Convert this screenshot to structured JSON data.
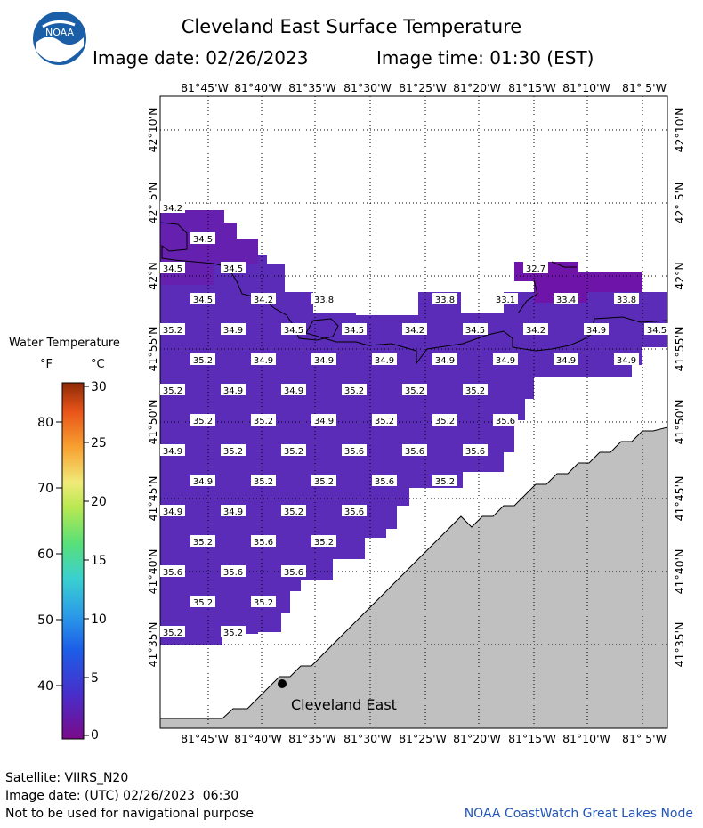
{
  "header": {
    "title": "Cleveland East Surface Temperature",
    "image_date": "Image date: 02/26/2023",
    "image_time": "Image time: 01:30 (EST)",
    "logo_text": "NOAA"
  },
  "map": {
    "lon_labels": [
      "81°45'W",
      "81°40'W",
      "81°35'W",
      "81°30'W",
      "81°25'W",
      "81°20'W",
      "81°15'W",
      "81°10'W",
      "81° 5'W"
    ],
    "lat_labels": [
      "42°10'N",
      "42° 5'N",
      "42°N",
      "41°55'N",
      "41°50'N",
      "41°45'N",
      "41°40'N",
      "41°35'N"
    ],
    "place_label": "Cleveland East",
    "temperature_labels": [
      "34.2",
      "34.5",
      "34.5",
      "34.5",
      "32.7",
      "34.5",
      "34.2",
      "33.8",
      "33.8",
      "33.1",
      "33.4",
      "33.8",
      "35.2",
      "34.9",
      "34.5",
      "34.5",
      "34.2",
      "34.5",
      "34.2",
      "34.9",
      "34.5",
      "35.2",
      "34.9",
      "34.9",
      "34.9",
      "34.9",
      "34.9",
      "34.9",
      "34.9",
      "35.2",
      "34.9",
      "34.9",
      "35.2",
      "35.2",
      "35.2",
      "35.2",
      "35.2",
      "34.9",
      "35.2",
      "35.2",
      "35.6",
      "34.9",
      "35.2",
      "35.2",
      "35.6",
      "35.6",
      "35.6",
      "34.9",
      "35.2",
      "35.2",
      "35.6",
      "35.2",
      "34.9",
      "34.9",
      "35.2",
      "35.6",
      "35.2",
      "35.6",
      "35.2",
      "35.6",
      "35.6",
      "35.6",
      "35.2",
      "35.2",
      "35.2",
      "35.2"
    ],
    "colors": {
      "water": "#5a2cb8",
      "land": "#c0c0c0",
      "cold_patch": "#6f14a8"
    }
  },
  "legend": {
    "title": "Water Temperature",
    "unit_f": "°F",
    "unit_c": "°C",
    "f_ticks": [
      "80",
      "70",
      "60",
      "50",
      "40"
    ],
    "c_ticks": [
      "30",
      "25",
      "20",
      "15",
      "10",
      "5",
      "0"
    ]
  },
  "footer": {
    "satellite": "Satellite: VIIRS_N20",
    "utc_date": "Image date: (UTC) 02/26/2023  06:30",
    "disclaimer": "Not to be used for navigational purpose",
    "credit": "NOAA CoastWatch Great Lakes Node"
  }
}
